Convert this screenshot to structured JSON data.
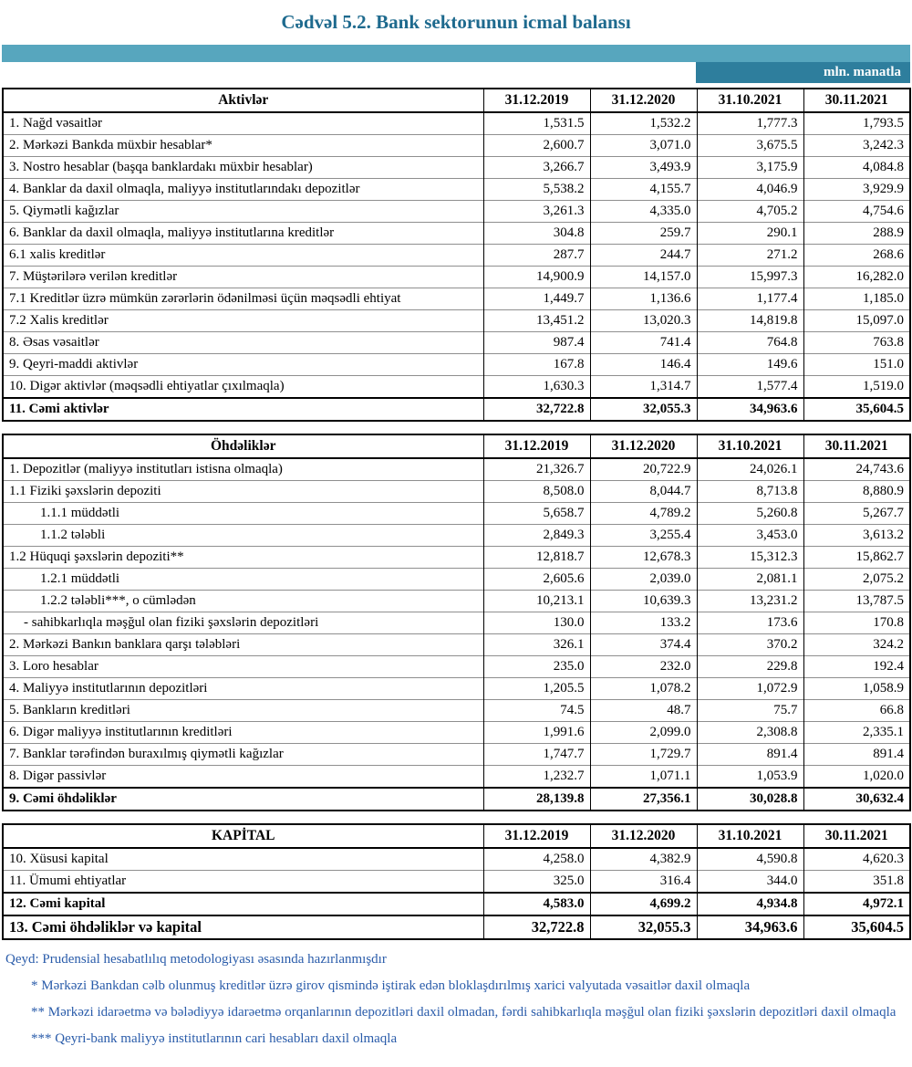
{
  "page": {
    "title": "Cədvəl 5.2. Bank sektorunun icmal balansı",
    "unit_label": "mln. manatla"
  },
  "colors": {
    "title_teal": "#1e6a8e",
    "band_teal": "#57a6be",
    "unit_cell_teal": "#2e7e9d",
    "footnote_blue": "#2a5caa"
  },
  "columns": [
    "31.12.2019",
    "31.12.2020",
    "31.10.2021",
    "30.11.2021"
  ],
  "tables": [
    {
      "id": "aktivler",
      "header": "Aktivlər",
      "rows": [
        {
          "label": "1. Nağd vəsaitlər",
          "values": [
            "1,531.5",
            "1,532.2",
            "1,777.3",
            "1,793.5"
          ],
          "indent": 0,
          "bold": false
        },
        {
          "label": "2. Mərkəzi Bankda müxbir hesablar*",
          "values": [
            "2,600.7",
            "3,071.0",
            "3,675.5",
            "3,242.3"
          ],
          "indent": 0,
          "bold": false
        },
        {
          "label": "3. Nostro hesablar (başqa banklardakı müxbir hesablar)",
          "values": [
            "3,266.7",
            "3,493.9",
            "3,175.9",
            "4,084.8"
          ],
          "indent": 0,
          "bold": false
        },
        {
          "label": "4. Banklar da daxil olmaqla, maliyyə institutlarındakı depozitlər",
          "values": [
            "5,538.2",
            "4,155.7",
            "4,046.9",
            "3,929.9"
          ],
          "indent": 0,
          "bold": false
        },
        {
          "label": "5. Qiymətli kağızlar",
          "values": [
            "3,261.3",
            "4,335.0",
            "4,705.2",
            "4,754.6"
          ],
          "indent": 0,
          "bold": false
        },
        {
          "label": "6. Banklar da daxil olmaqla, maliyyə institutlarına kreditlər",
          "values": [
            "304.8",
            "259.7",
            "290.1",
            "288.9"
          ],
          "indent": 0,
          "bold": false
        },
        {
          "label": "6.1 xalis kreditlər",
          "values": [
            "287.7",
            "244.7",
            "271.2",
            "268.6"
          ],
          "indent": 0,
          "bold": false
        },
        {
          "label": "7. Müştərilərə verilən kreditlər",
          "values": [
            "14,900.9",
            "14,157.0",
            "15,997.3",
            "16,282.0"
          ],
          "indent": 0,
          "bold": false
        },
        {
          "label": "7.1 Kreditlər üzrə mümkün zərərlərin ödənilməsi üçün məqsədli ehtiyat",
          "values": [
            "1,449.7",
            "1,136.6",
            "1,177.4",
            "1,185.0"
          ],
          "indent": 0,
          "bold": false
        },
        {
          "label": "7.2 Xalis kreditlər",
          "values": [
            "13,451.2",
            "13,020.3",
            "14,819.8",
            "15,097.0"
          ],
          "indent": 0,
          "bold": false
        },
        {
          "label": "8.  Əsas vəsaitlər",
          "values": [
            "987.4",
            "741.4",
            "764.8",
            "763.8"
          ],
          "indent": 0,
          "bold": false
        },
        {
          "label": "9. Qeyri-maddi aktivlər",
          "values": [
            "167.8",
            "146.4",
            "149.6",
            "151.0"
          ],
          "indent": 0,
          "bold": false
        },
        {
          "label": "10. Digər aktivlər (məqsədli ehtiyatlar çıxılmaqla)",
          "values": [
            "1,630.3",
            "1,314.7",
            "1,577.4",
            "1,519.0"
          ],
          "indent": 0,
          "bold": false
        },
        {
          "label": "11. Cəmi aktivlər",
          "values": [
            "32,722.8",
            "32,055.3",
            "34,963.6",
            "35,604.5"
          ],
          "indent": 0,
          "bold": true
        }
      ]
    },
    {
      "id": "ohdelikler",
      "header": "Öhdəliklər",
      "rows": [
        {
          "label": "1. Depozitlər (maliyyə institutları istisna olmaqla)",
          "values": [
            "21,326.7",
            "20,722.9",
            "24,026.1",
            "24,743.6"
          ],
          "indent": 0,
          "bold": false
        },
        {
          "label": "1.1 Fiziki şəxslərin depoziti",
          "values": [
            "8,508.0",
            "8,044.7",
            "8,713.8",
            "8,880.9"
          ],
          "indent": 0,
          "bold": false
        },
        {
          "label": "1.1.1 müddətli",
          "values": [
            "5,658.7",
            "4,789.2",
            "5,260.8",
            "5,267.7"
          ],
          "indent": 2,
          "bold": false
        },
        {
          "label": "1.1.2 tələbli",
          "values": [
            "2,849.3",
            "3,255.4",
            "3,453.0",
            "3,613.2"
          ],
          "indent": 2,
          "bold": false
        },
        {
          "label": "1.2 Hüquqi şəxslərin depoziti**",
          "values": [
            "12,818.7",
            "12,678.3",
            "15,312.3",
            "15,862.7"
          ],
          "indent": 0,
          "bold": false
        },
        {
          "label": "1.2.1 müddətli",
          "values": [
            "2,605.6",
            "2,039.0",
            "2,081.1",
            "2,075.2"
          ],
          "indent": 2,
          "bold": false
        },
        {
          "label": "1.2.2 tələbli***, o cümlədən",
          "values": [
            "10,213.1",
            "10,639.3",
            "13,231.2",
            "13,787.5"
          ],
          "indent": 2,
          "bold": false
        },
        {
          "label": "- sahibkarlıqla məşğul olan fiziki şəxslərin depozitləri",
          "values": [
            "130.0",
            "133.2",
            "173.6",
            "170.8"
          ],
          "indent": 1,
          "bold": false
        },
        {
          "label": "2. Mərkəzi Bankın banklara qarşı tələbləri",
          "values": [
            "326.1",
            "374.4",
            "370.2",
            "324.2"
          ],
          "indent": 0,
          "bold": false
        },
        {
          "label": "3. Loro hesablar",
          "values": [
            "235.0",
            "232.0",
            "229.8",
            "192.4"
          ],
          "indent": 0,
          "bold": false
        },
        {
          "label": "4. Maliyyə institutlarının  depozitləri",
          "values": [
            "1,205.5",
            "1,078.2",
            "1,072.9",
            "1,058.9"
          ],
          "indent": 0,
          "bold": false
        },
        {
          "label": "5. Bankların kreditləri",
          "values": [
            "74.5",
            "48.7",
            "75.7",
            "66.8"
          ],
          "indent": 0,
          "bold": false
        },
        {
          "label": "6. Digər maliyyə institutlarının kreditləri",
          "values": [
            "1,991.6",
            "2,099.0",
            "2,308.8",
            "2,335.1"
          ],
          "indent": 0,
          "bold": false
        },
        {
          "label": "7. Banklar tərəfindən buraxılmış qiymətli kağızlar",
          "values": [
            "1,747.7",
            "1,729.7",
            "891.4",
            "891.4"
          ],
          "indent": 0,
          "bold": false
        },
        {
          "label": "8. Digər passivlər",
          "values": [
            "1,232.7",
            "1,071.1",
            "1,053.9",
            "1,020.0"
          ],
          "indent": 0,
          "bold": false
        },
        {
          "label": "9. Cəmi öhdəliklər",
          "values": [
            "28,139.8",
            "27,356.1",
            "30,028.8",
            "30,632.4"
          ],
          "indent": 0,
          "bold": true
        }
      ]
    },
    {
      "id": "kapital",
      "header": "KAPİTAL",
      "rows": [
        {
          "label": "10. Xüsusi kapital",
          "values": [
            "4,258.0",
            "4,382.9",
            "4,590.8",
            "4,620.3"
          ],
          "indent": 0,
          "bold": false
        },
        {
          "label": "11. Ümumi ehtiyatlar",
          "values": [
            "325.0",
            "316.4",
            "344.0",
            "351.8"
          ],
          "indent": 0,
          "bold": false
        },
        {
          "label": "12. Cəmi kapital",
          "values": [
            "4,583.0",
            "4,699.2",
            "4,934.8",
            "4,972.1"
          ],
          "indent": 0,
          "bold": true
        },
        {
          "label": "13. Cəmi öhdəliklər və kapital",
          "values": [
            "32,722.8",
            "32,055.3",
            "34,963.6",
            "35,604.5"
          ],
          "indent": 0,
          "bold": true,
          "large": true
        }
      ]
    }
  ],
  "footnotes": [
    "Qeyd: Prudensial hesabatlılıq metodologiyası əsasında hazırlanmışdır",
    "* Mərkəzi Bankdan cəlb olunmuş kreditlər üzrə girov qismində iştirak edən bloklaşdırılmış xarici valyutada vəsaitlər daxil olmaqla",
    "** Mərkəzi idarəetmə və bələdiyyə idarəetmə orqanlarının depozitləri daxil olmadan, fərdi sahibkarlıqla məşğul olan fiziki şəxslərin depozitləri daxil olmaqla",
    "*** Qeyri-bank maliyyə institutlarının cari hesabları daxil olmaqla"
  ]
}
